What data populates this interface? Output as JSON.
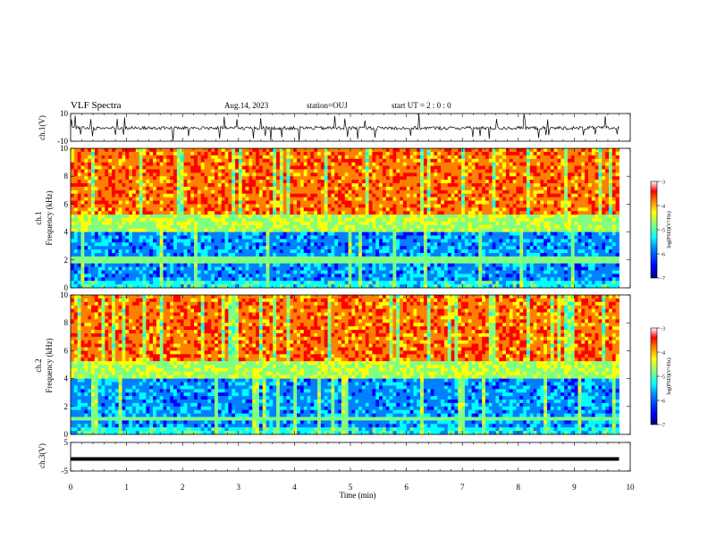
{
  "header": {
    "title": "VLF Spectra",
    "date": "Aug.14, 2023",
    "station": "station=OUJ",
    "start": "start UT =  2 : 0 : 0"
  },
  "colors": {
    "spectrogram_colormap": [
      "#00007f",
      "#0000ff",
      "#0080ff",
      "#00ffff",
      "#80ff80",
      "#ffff00",
      "#ff8000",
      "#ff0000",
      "#ffffff"
    ]
  },
  "chart_data": [
    {
      "type": "line",
      "ylabel": "ch.1(V)",
      "ylim": [
        -10,
        10
      ],
      "yticks": [
        "10",
        "-10"
      ],
      "description_values": "noisy waveform around ~-0.5 V with spikes up to ±10 V"
    },
    {
      "type": "heatmap",
      "ylabel": "ch.1\nFrequency (kHz)",
      "ylabel_line1": "ch.1",
      "ylabel_line2": "Frequency  (kHz)",
      "ylim": [
        0,
        10
      ],
      "yticks": [
        "0",
        "2",
        "4",
        "6",
        "8",
        "10"
      ],
      "colorbar": {
        "label": "log(PSD)(V²/Hz)",
        "range": [
          -7,
          -3
        ],
        "ticks": [
          "-3",
          "-4",
          "-5",
          "-6",
          "-7"
        ]
      }
    },
    {
      "type": "heatmap",
      "ylabel_line1": "ch.2",
      "ylabel_line2": "Frequency  (kHz)",
      "ylim": [
        0,
        10
      ],
      "yticks": [
        "0",
        "2",
        "4",
        "6",
        "8",
        "10"
      ],
      "colorbar": {
        "label": "log(PSD)(V²/Hz)",
        "range": [
          -7,
          -3
        ],
        "ticks": [
          "-3",
          "-4",
          "-5",
          "-6",
          "-7"
        ]
      }
    },
    {
      "type": "line",
      "ylabel": "ch.3(V)",
      "ylim": [
        -5,
        5
      ],
      "yticks": [
        "5",
        "-5"
      ],
      "x": [
        0,
        9.8
      ],
      "y": [
        -0.8,
        -0.8
      ]
    }
  ],
  "xaxis": {
    "label": "Time  (min)",
    "range": [
      0,
      10
    ],
    "ticks": [
      "0",
      "1",
      "2",
      "3",
      "4",
      "5",
      "6",
      "7",
      "8",
      "9",
      "10"
    ]
  }
}
